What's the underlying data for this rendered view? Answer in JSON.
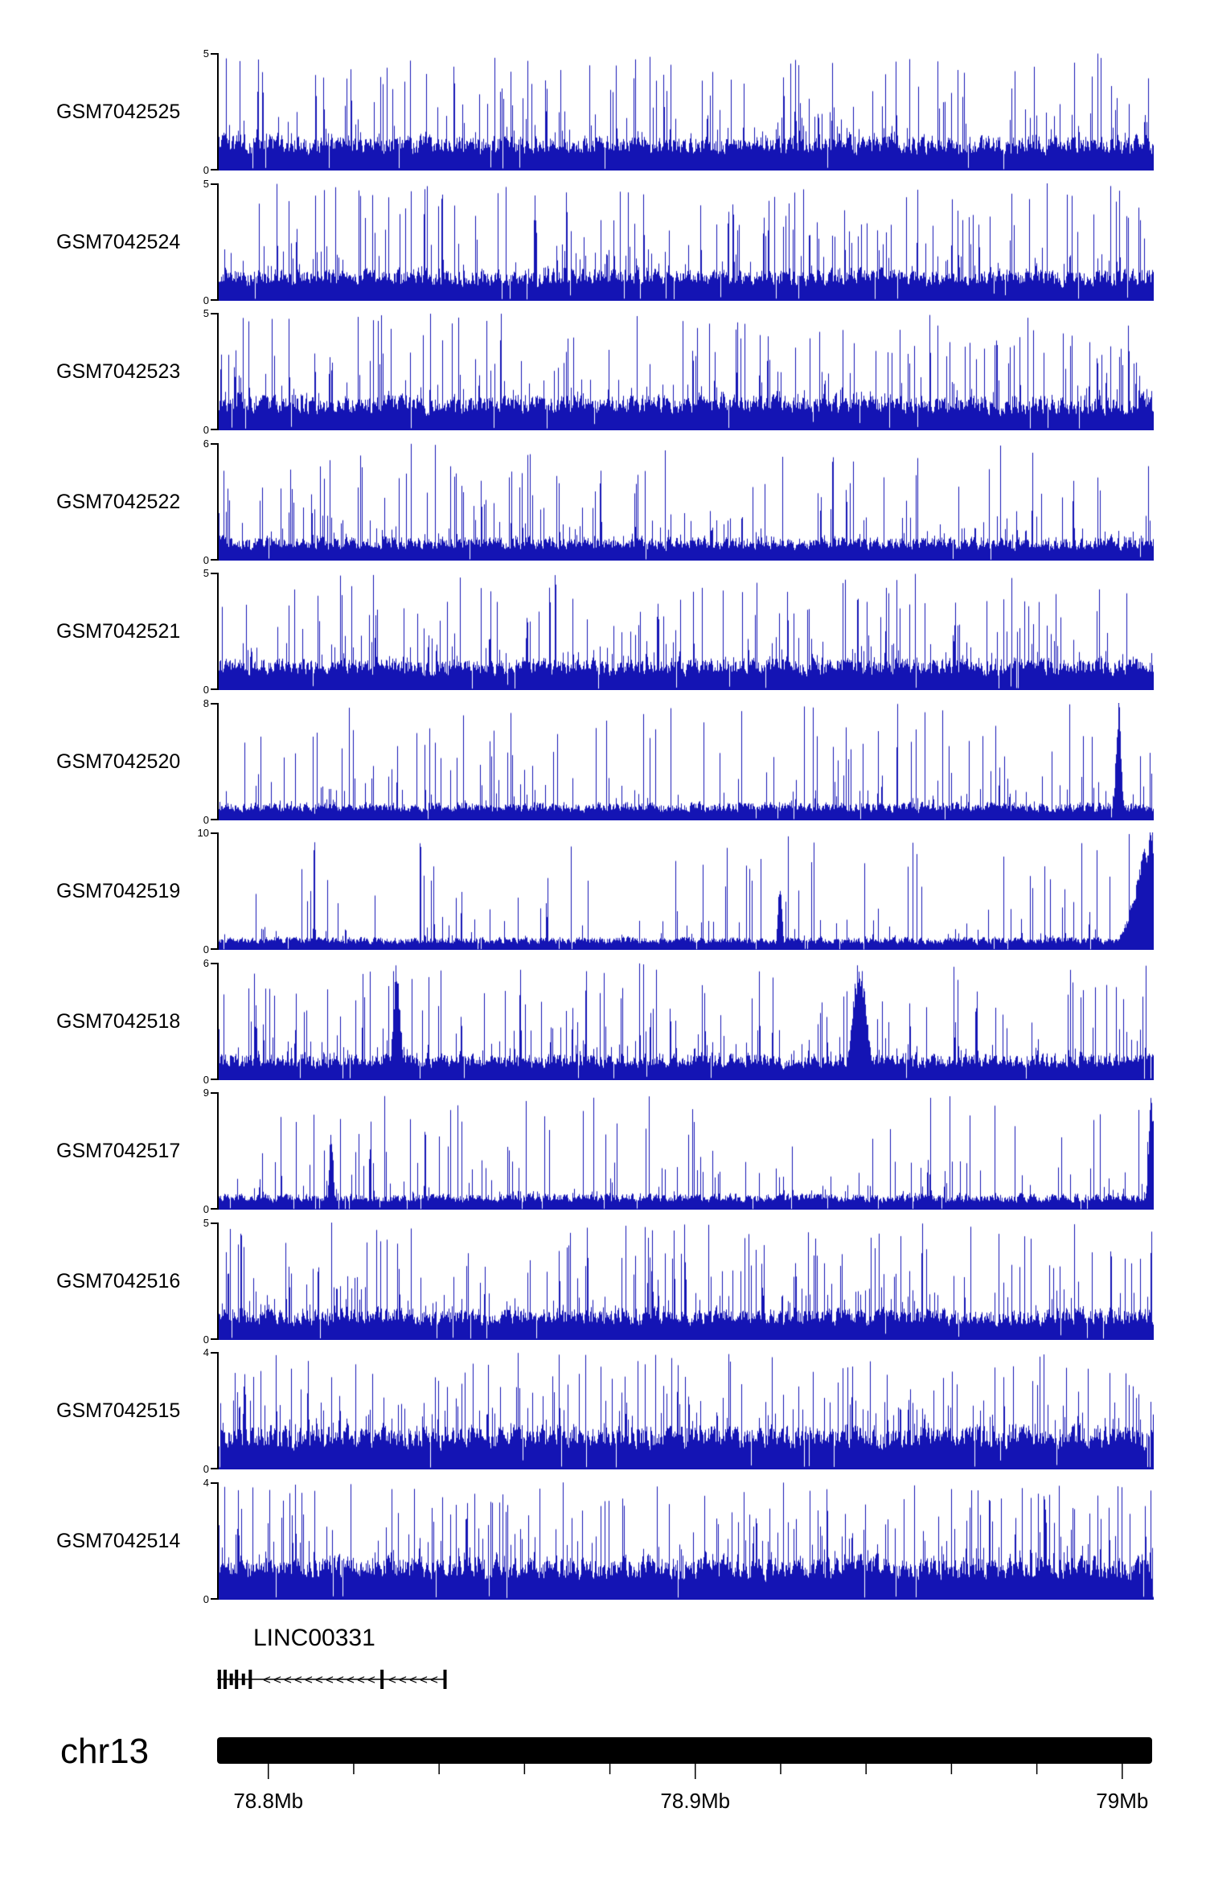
{
  "chart_data": {
    "type": "area",
    "subtype": "genome-coverage-tracks",
    "title": "",
    "signal_color": "#1414b4",
    "x_axis": {
      "range_mb": [
        78.788,
        79.007
      ],
      "tick_labels": [
        "78.8Mb",
        "78.9Mb",
        "79Mb"
      ],
      "tick_positions_mb": [
        78.8,
        78.9,
        79.0
      ],
      "minor_tick_interval_mb": 0.02,
      "grid": false
    },
    "tracks": [
      {
        "name": "GSM7042525",
        "ylim": [
          0,
          5
        ],
        "baseline": 1.1,
        "spike_prob": 0.32,
        "spike_pow": 2.8,
        "peaks": []
      },
      {
        "name": "GSM7042524",
        "ylim": [
          0,
          5
        ],
        "baseline": 1.0,
        "spike_prob": 0.3,
        "spike_pow": 2.8,
        "peaks": []
      },
      {
        "name": "GSM7042523",
        "ylim": [
          0,
          5
        ],
        "baseline": 1.1,
        "spike_prob": 0.32,
        "spike_pow": 2.8,
        "peaks": []
      },
      {
        "name": "GSM7042522",
        "ylim": [
          0,
          6
        ],
        "baseline": 0.9,
        "spike_prob": 0.28,
        "spike_pow": 3.2,
        "peaks": []
      },
      {
        "name": "GSM7042521",
        "ylim": [
          0,
          5
        ],
        "baseline": 1.0,
        "spike_prob": 0.3,
        "spike_pow": 3.0,
        "peaks": []
      },
      {
        "name": "GSM7042520",
        "ylim": [
          0,
          8
        ],
        "baseline": 0.9,
        "spike_prob": 0.25,
        "spike_pow": 4.0,
        "peaks": [
          {
            "pos": 0.962,
            "w": 0.004,
            "h": 0.97
          }
        ]
      },
      {
        "name": "GSM7042519",
        "ylim": [
          0,
          10
        ],
        "baseline": 0.8,
        "spike_prob": 0.22,
        "spike_pow": 5.0,
        "peaks": [
          {
            "pos": 1.0,
            "w": 0.025,
            "h": 0.97
          },
          {
            "pos": 0.6,
            "w": 0.003,
            "h": 0.55
          }
        ]
      },
      {
        "name": "GSM7042518",
        "ylim": [
          0,
          6
        ],
        "baseline": 1.0,
        "spike_prob": 0.28,
        "spike_pow": 3.2,
        "peaks": [
          {
            "pos": 0.19,
            "w": 0.005,
            "h": 0.95
          },
          {
            "pos": 0.685,
            "w": 0.01,
            "h": 0.98
          }
        ]
      },
      {
        "name": "GSM7042517",
        "ylim": [
          0,
          9
        ],
        "baseline": 0.9,
        "spike_prob": 0.25,
        "spike_pow": 4.0,
        "peaks": [
          {
            "pos": 0.997,
            "w": 0.004,
            "h": 0.97
          },
          {
            "pos": 0.12,
            "w": 0.003,
            "h": 0.65
          }
        ]
      },
      {
        "name": "GSM7042516",
        "ylim": [
          0,
          5
        ],
        "baseline": 1.0,
        "spike_prob": 0.3,
        "spike_pow": 3.0,
        "peaks": []
      },
      {
        "name": "GSM7042515",
        "ylim": [
          0,
          4
        ],
        "baseline": 1.1,
        "spike_prob": 0.32,
        "spike_pow": 2.6,
        "peaks": []
      },
      {
        "name": "GSM7042514",
        "ylim": [
          0,
          4
        ],
        "baseline": 1.1,
        "spike_prob": 0.32,
        "spike_pow": 2.6,
        "peaks": []
      }
    ],
    "gene_track": {
      "name": "LINC00331",
      "strand": "-",
      "start_frac": 0.0,
      "end_frac": 0.245,
      "exons": [
        {
          "f": 0.01,
          "h": 1.0
        },
        {
          "f": 0.035,
          "h": 1.0
        },
        {
          "f": 0.062,
          "h": 0.6
        },
        {
          "f": 0.085,
          "h": 1.0
        },
        {
          "f": 0.115,
          "h": 0.6
        },
        {
          "f": 0.145,
          "h": 1.0
        },
        {
          "f": 0.72,
          "h": 1.0
        },
        {
          "f": 0.995,
          "h": 1.0
        }
      ]
    },
    "chromosome": {
      "name": "chr13"
    }
  }
}
